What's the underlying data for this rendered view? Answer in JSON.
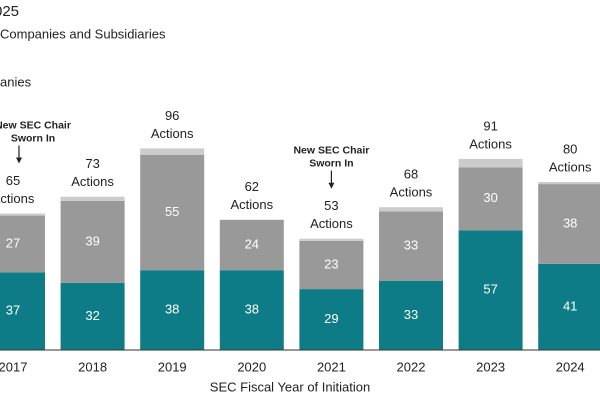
{
  "chart_data": {
    "type": "stacked_bar",
    "title": "025",
    "xlabel": "SEC Fiscal Year of Initiation",
    "categories": [
      "2017",
      "2018",
      "2019",
      "2020",
      "2021",
      "2022",
      "2023",
      "2024"
    ],
    "series": [
      {
        "name": "Companies and Subsidiaries",
        "color": "#0e7c86",
        "values": [
          37,
          32,
          38,
          38,
          29,
          33,
          57,
          41
        ]
      },
      {
        "name": "anies",
        "color": "#999999",
        "values": [
          27,
          39,
          55,
          24,
          23,
          33,
          30,
          38
        ]
      },
      {
        "color": "#cccccc",
        "values": [
          1,
          2,
          3,
          0,
          1,
          2,
          4,
          1
        ]
      }
    ],
    "totals": [
      65,
      73,
      96,
      62,
      53,
      68,
      91,
      80
    ],
    "total_unit": "Actions",
    "annotations": [
      {
        "x": "2017",
        "lines": [
          "New SEC Chair",
          "Sworn In"
        ]
      },
      {
        "x": "2021",
        "lines": [
          "New SEC Chair",
          "Sworn In"
        ]
      }
    ],
    "ylim": [
      0,
      100
    ]
  }
}
